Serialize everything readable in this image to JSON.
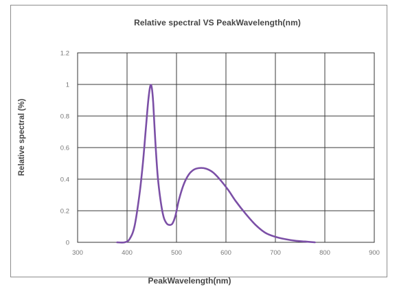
{
  "chart_data": {
    "type": "line",
    "title": "Relative spectral  VS  PeakWavelength(nm)",
    "xlabel": "PeakWavelength(nm)",
    "ylabel": "Relative spectral (%)",
    "xlim": [
      300,
      900
    ],
    "ylim": [
      0,
      1.2
    ],
    "x_ticks": [
      "300",
      "400",
      "500",
      "600",
      "700",
      "800",
      "900"
    ],
    "y_ticks": [
      "0",
      "0.2",
      "0.4",
      "0.6",
      "0.8",
      "1",
      "1.2"
    ],
    "grid": true,
    "legend": "none",
    "series": [
      {
        "color": "#7b4fa6",
        "x": [
          380,
          395,
          405,
          415,
          425,
          432,
          438,
          443,
          447,
          450,
          453,
          457,
          462,
          468,
          474,
          480,
          486,
          492,
          498,
          505,
          515,
          525,
          535,
          545,
          555,
          565,
          575,
          590,
          605,
          620,
          640,
          660,
          680,
          700,
          720,
          740,
          760,
          780
        ],
        "y": [
          0.0,
          0.0,
          0.02,
          0.1,
          0.3,
          0.5,
          0.72,
          0.9,
          0.99,
          0.98,
          0.88,
          0.65,
          0.42,
          0.26,
          0.16,
          0.12,
          0.11,
          0.12,
          0.17,
          0.27,
          0.37,
          0.43,
          0.46,
          0.47,
          0.47,
          0.46,
          0.44,
          0.39,
          0.33,
          0.26,
          0.18,
          0.11,
          0.06,
          0.035,
          0.02,
          0.01,
          0.005,
          0.0
        ]
      }
    ]
  }
}
